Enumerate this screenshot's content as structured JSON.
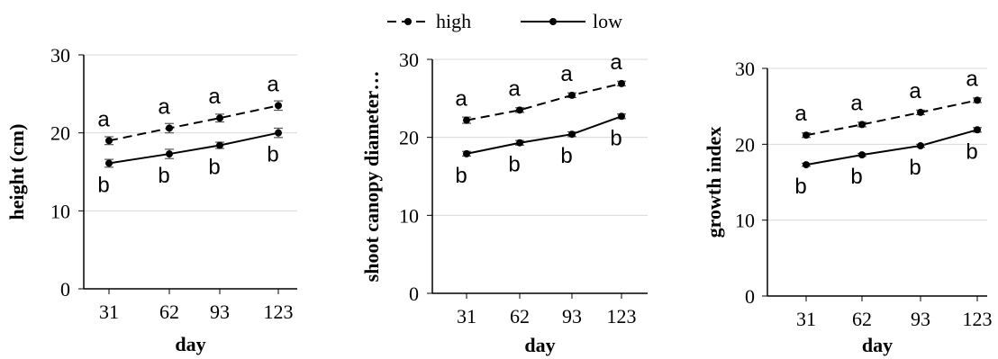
{
  "legend": {
    "position": "top-center",
    "items": [
      {
        "label": "high",
        "line": "dashed"
      },
      {
        "label": "low",
        "line": "solid"
      }
    ]
  },
  "chart_data": [
    {
      "type": "line",
      "title": "",
      "xlabel": "day",
      "ylabel": "height (cm)",
      "x": [
        31,
        62,
        93,
        123
      ],
      "ylim": [
        0,
        30
      ],
      "yticks": [
        0,
        10,
        20,
        30
      ],
      "grid": true,
      "series": [
        {
          "name": "high",
          "values": [
            19.0,
            20.6,
            21.9,
            23.5
          ],
          "errors": [
            0.5,
            0.6,
            0.5,
            0.6
          ],
          "letters": [
            "a",
            "a",
            "a",
            "a"
          ]
        },
        {
          "name": "low",
          "values": [
            16.1,
            17.3,
            18.4,
            20.0
          ],
          "errors": [
            0.5,
            0.6,
            0.4,
            0.6
          ],
          "letters": [
            "b",
            "b",
            "b",
            "b"
          ]
        }
      ]
    },
    {
      "type": "line",
      "title": "",
      "xlabel": "day",
      "ylabel": "shoot canopy diameter…",
      "x": [
        31,
        62,
        93,
        123
      ],
      "ylim": [
        0,
        30
      ],
      "yticks": [
        0,
        10,
        20,
        30
      ],
      "grid": true,
      "series": [
        {
          "name": "high",
          "values": [
            22.2,
            23.5,
            25.4,
            26.9
          ],
          "errors": [
            0.4,
            0.3,
            0.3,
            0.3
          ],
          "letters": [
            "a",
            "a",
            "a",
            "a"
          ]
        },
        {
          "name": "low",
          "values": [
            17.9,
            19.3,
            20.4,
            22.7
          ],
          "errors": [
            0.3,
            0.3,
            0.3,
            0.3
          ],
          "letters": [
            "b",
            "b",
            "b",
            "b"
          ]
        }
      ]
    },
    {
      "type": "line",
      "title": "",
      "xlabel": "day",
      "ylabel": "growth index",
      "x": [
        31,
        62,
        93,
        123
      ],
      "ylim": [
        0,
        30
      ],
      "yticks": [
        0,
        10,
        20,
        30
      ],
      "grid": true,
      "series": [
        {
          "name": "high",
          "values": [
            21.2,
            22.6,
            24.2,
            25.8
          ],
          "errors": [
            0.3,
            0.3,
            0.3,
            0.3
          ],
          "letters": [
            "a",
            "a",
            "a",
            "a"
          ]
        },
        {
          "name": "low",
          "values": [
            17.3,
            18.6,
            19.8,
            21.9
          ],
          "errors": [
            0.2,
            0.2,
            0.2,
            0.3
          ],
          "letters": [
            "b",
            "b",
            "b",
            "b"
          ]
        }
      ]
    }
  ]
}
